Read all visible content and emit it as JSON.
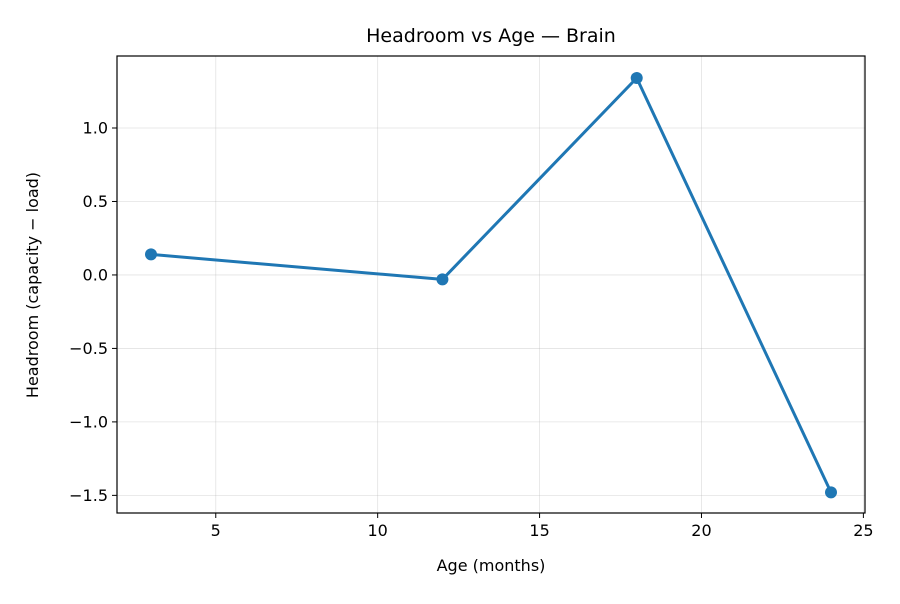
{
  "chart_data": {
    "type": "line",
    "title": "Headroom vs Age — Brain",
    "xlabel": "Age (months)",
    "ylabel": "Headroom (capacity − load)",
    "xlim": [
      1.95,
      25.05
    ],
    "ylim": [
      -1.62,
      1.49
    ],
    "x_ticks": [
      5,
      10,
      15,
      20,
      25
    ],
    "x_tick_labels": [
      "5",
      "10",
      "15",
      "20",
      "25"
    ],
    "y_ticks": [
      1.0,
      0.5,
      0.0,
      -0.5,
      -1.0,
      -1.5
    ],
    "y_tick_labels": [
      "1.0",
      "0.5",
      "0.0",
      "−0.5",
      "−1.0",
      "−1.5"
    ],
    "grid": true,
    "legend": false,
    "series": [
      {
        "x": [
          3,
          12,
          18,
          24
        ],
        "values": [
          0.14,
          -0.03,
          1.34,
          -1.48
        ],
        "color": "#1f77b4",
        "marker": "circle"
      }
    ]
  }
}
